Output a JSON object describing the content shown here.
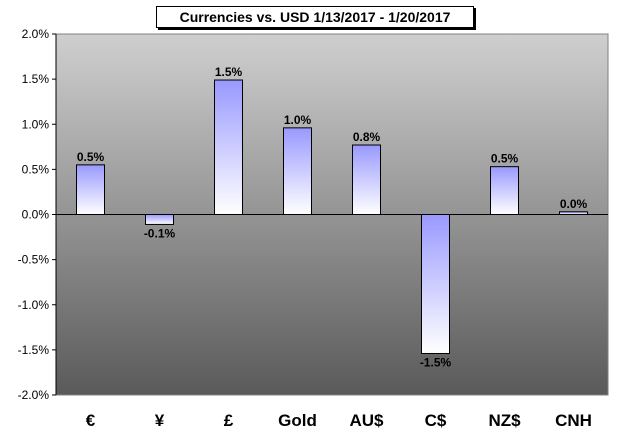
{
  "chart_data": {
    "type": "bar",
    "title": "Currencies vs. USD 1/13/2017 - 1/20/2017",
    "categories": [
      "€",
      "¥",
      "£",
      "Gold",
      "AU$",
      "C$",
      "NZ$",
      "CNH"
    ],
    "values": [
      0.55,
      -0.11,
      1.49,
      0.96,
      0.77,
      -1.54,
      0.53,
      0.03
    ],
    "data_labels": [
      "0.5%",
      "-0.1%",
      "1.5%",
      "1.0%",
      "0.8%",
      "-1.5%",
      "0.5%",
      "0.0%"
    ],
    "y_ticks": [
      2.0,
      1.5,
      1.0,
      0.5,
      0.0,
      -0.5,
      -1.0,
      -1.5,
      -2.0
    ],
    "y_tick_labels": [
      "2.0%",
      "1.5%",
      "1.0%",
      "0.5%",
      "0.0%",
      "-0.5%",
      "-1.0%",
      "-1.5%",
      "-2.0%"
    ],
    "ylim": [
      -2.0,
      2.0
    ],
    "xlabel": "",
    "ylabel": "",
    "grid": false,
    "legend": "none",
    "colors": {
      "plot_top": "#cfcfcf",
      "plot_bottom": "#5a5a5a",
      "bar_tint": "#9999ff",
      "bar_light": "#ffffff",
      "bar_stroke": "#000000"
    }
  }
}
